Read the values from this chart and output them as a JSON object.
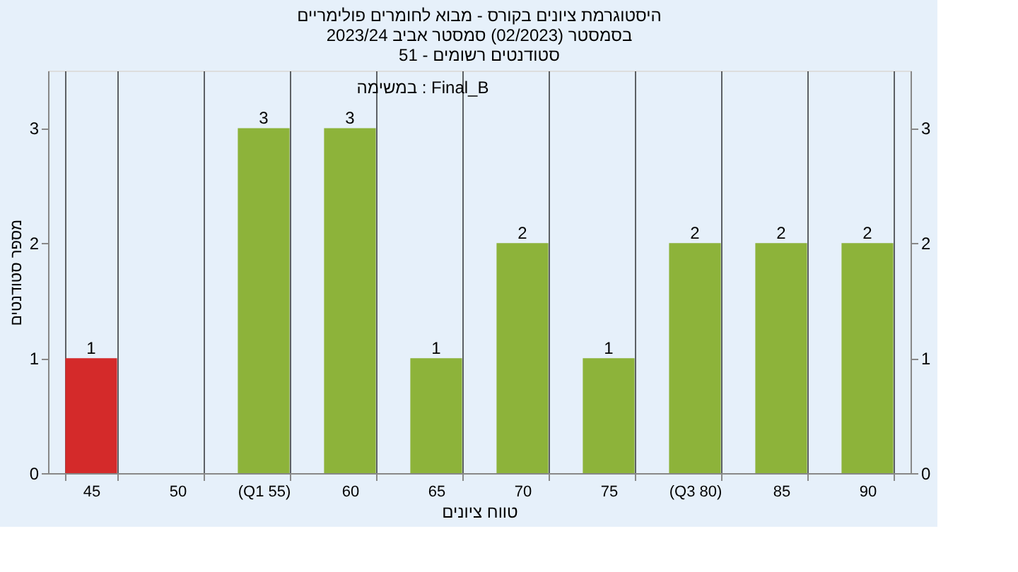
{
  "chart_data": {
    "type": "bar",
    "title": [
      "היסטוגרמת ציונים בקורס - מבוא לחומרים פולימריים",
      "בסמסטר  (02/2023)  סמסטר אביב 2023/24",
      "סטודנטים רשומים - 51"
    ],
    "xlabel": "טווח ציונים",
    "ylabel": "מספר סטודנטים",
    "annotations": [
      "במשימה : Final_B"
    ],
    "categories": [
      "45",
      "50",
      "(Q1 55)",
      "60",
      "65",
      "70",
      "75",
      "(Q3 80)",
      "85",
      "90"
    ],
    "values": [
      1,
      0,
      3,
      3,
      1,
      2,
      1,
      2,
      2,
      2
    ],
    "colors": [
      "#d42a2a",
      "#8db33a",
      "#8db33a",
      "#8db33a",
      "#8db33a",
      "#8db33a",
      "#8db33a",
      "#8db33a",
      "#8db33a",
      "#8db33a"
    ],
    "ylim": [
      0,
      3.5
    ],
    "yticks": [
      0,
      1,
      2,
      3
    ],
    "y2lim": [
      0,
      3.5
    ],
    "y2ticks": [
      0,
      1,
      2,
      3
    ],
    "value_labels": [
      "1",
      null,
      "3",
      "3",
      "1",
      "2",
      "1",
      "2",
      "2",
      "2"
    ],
    "grid": "x"
  }
}
